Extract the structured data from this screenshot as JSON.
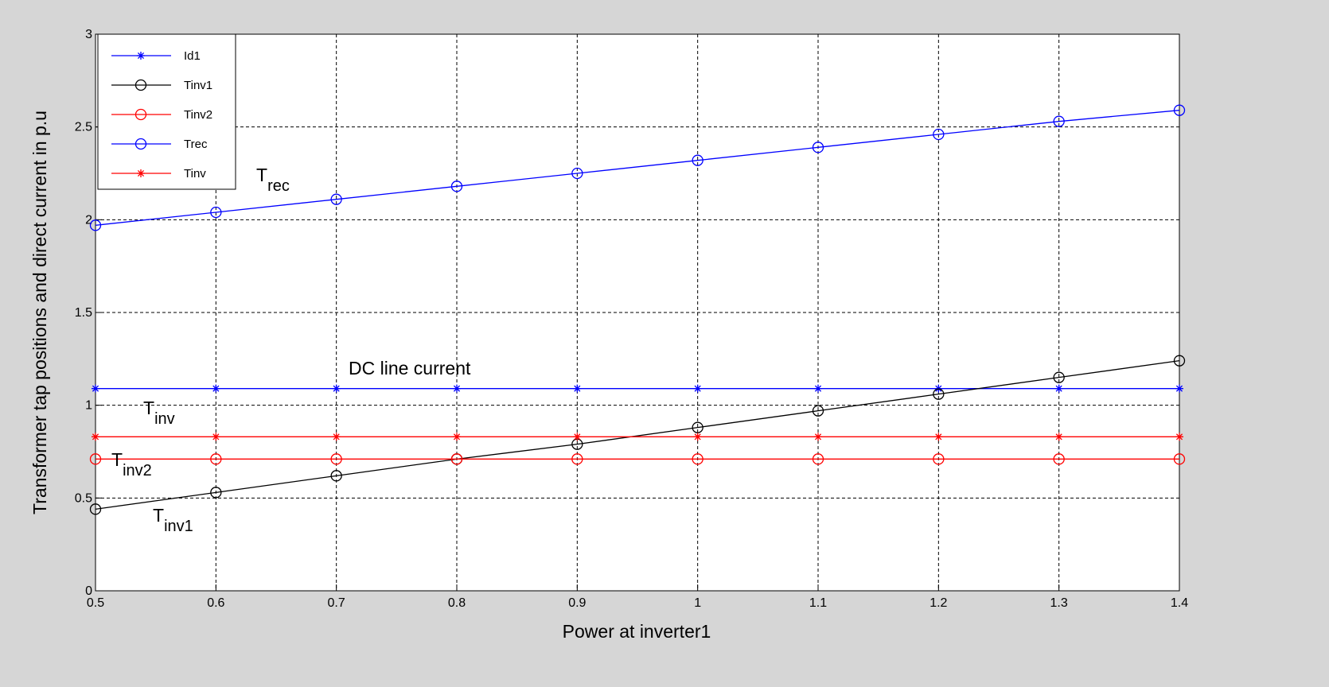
{
  "chart_data": {
    "type": "line",
    "x_label": "Power at inverter1",
    "y_label": "Transformer tap positions and direct current in p.u",
    "x": [
      0.5,
      0.6,
      0.7,
      0.8,
      0.9,
      1.0,
      1.1,
      1.2,
      1.3,
      1.4
    ],
    "series": [
      {
        "name": "Id1",
        "color": "#0000ff",
        "marker": "star",
        "values": [
          1.09,
          1.09,
          1.09,
          1.09,
          1.09,
          1.09,
          1.09,
          1.09,
          1.09,
          1.09
        ]
      },
      {
        "name": "Tinv1",
        "color": "#000000",
        "marker": "circle",
        "values": [
          0.44,
          0.53,
          0.62,
          0.71,
          0.79,
          0.88,
          0.97,
          1.06,
          1.15,
          1.24
        ]
      },
      {
        "name": "Tinv2",
        "color": "#ff0000",
        "marker": "circle",
        "values": [
          0.71,
          0.71,
          0.71,
          0.71,
          0.71,
          0.71,
          0.71,
          0.71,
          0.71,
          0.71
        ]
      },
      {
        "name": "Trec",
        "color": "#0000ff",
        "marker": "circle",
        "values": [
          1.97,
          2.04,
          2.11,
          2.18,
          2.25,
          2.32,
          2.39,
          2.46,
          2.53,
          2.59
        ]
      },
      {
        "name": "Tinv",
        "color": "#ff0000",
        "marker": "star",
        "values": [
          0.83,
          0.83,
          0.83,
          0.83,
          0.83,
          0.83,
          0.83,
          0.83,
          0.83,
          0.83
        ]
      }
    ],
    "annotations": [
      {
        "text": "T",
        "subscript": "rec"
      },
      {
        "text": "DC line current"
      },
      {
        "text": "T",
        "subscript": "inv"
      },
      {
        "text": "T",
        "subscript": "inv2"
      },
      {
        "text": "T",
        "subscript": "inv1"
      }
    ],
    "xlim": [
      0.5,
      1.4
    ],
    "ylim": [
      0,
      3
    ],
    "xticks": [
      0.5,
      0.6,
      0.7,
      0.8,
      0.9,
      1,
      1.1,
      1.2,
      1.3,
      1.4
    ],
    "yticks": [
      0,
      0.5,
      1,
      1.5,
      2,
      2.5,
      3
    ],
    "grid": true,
    "legend": "upper-left"
  }
}
